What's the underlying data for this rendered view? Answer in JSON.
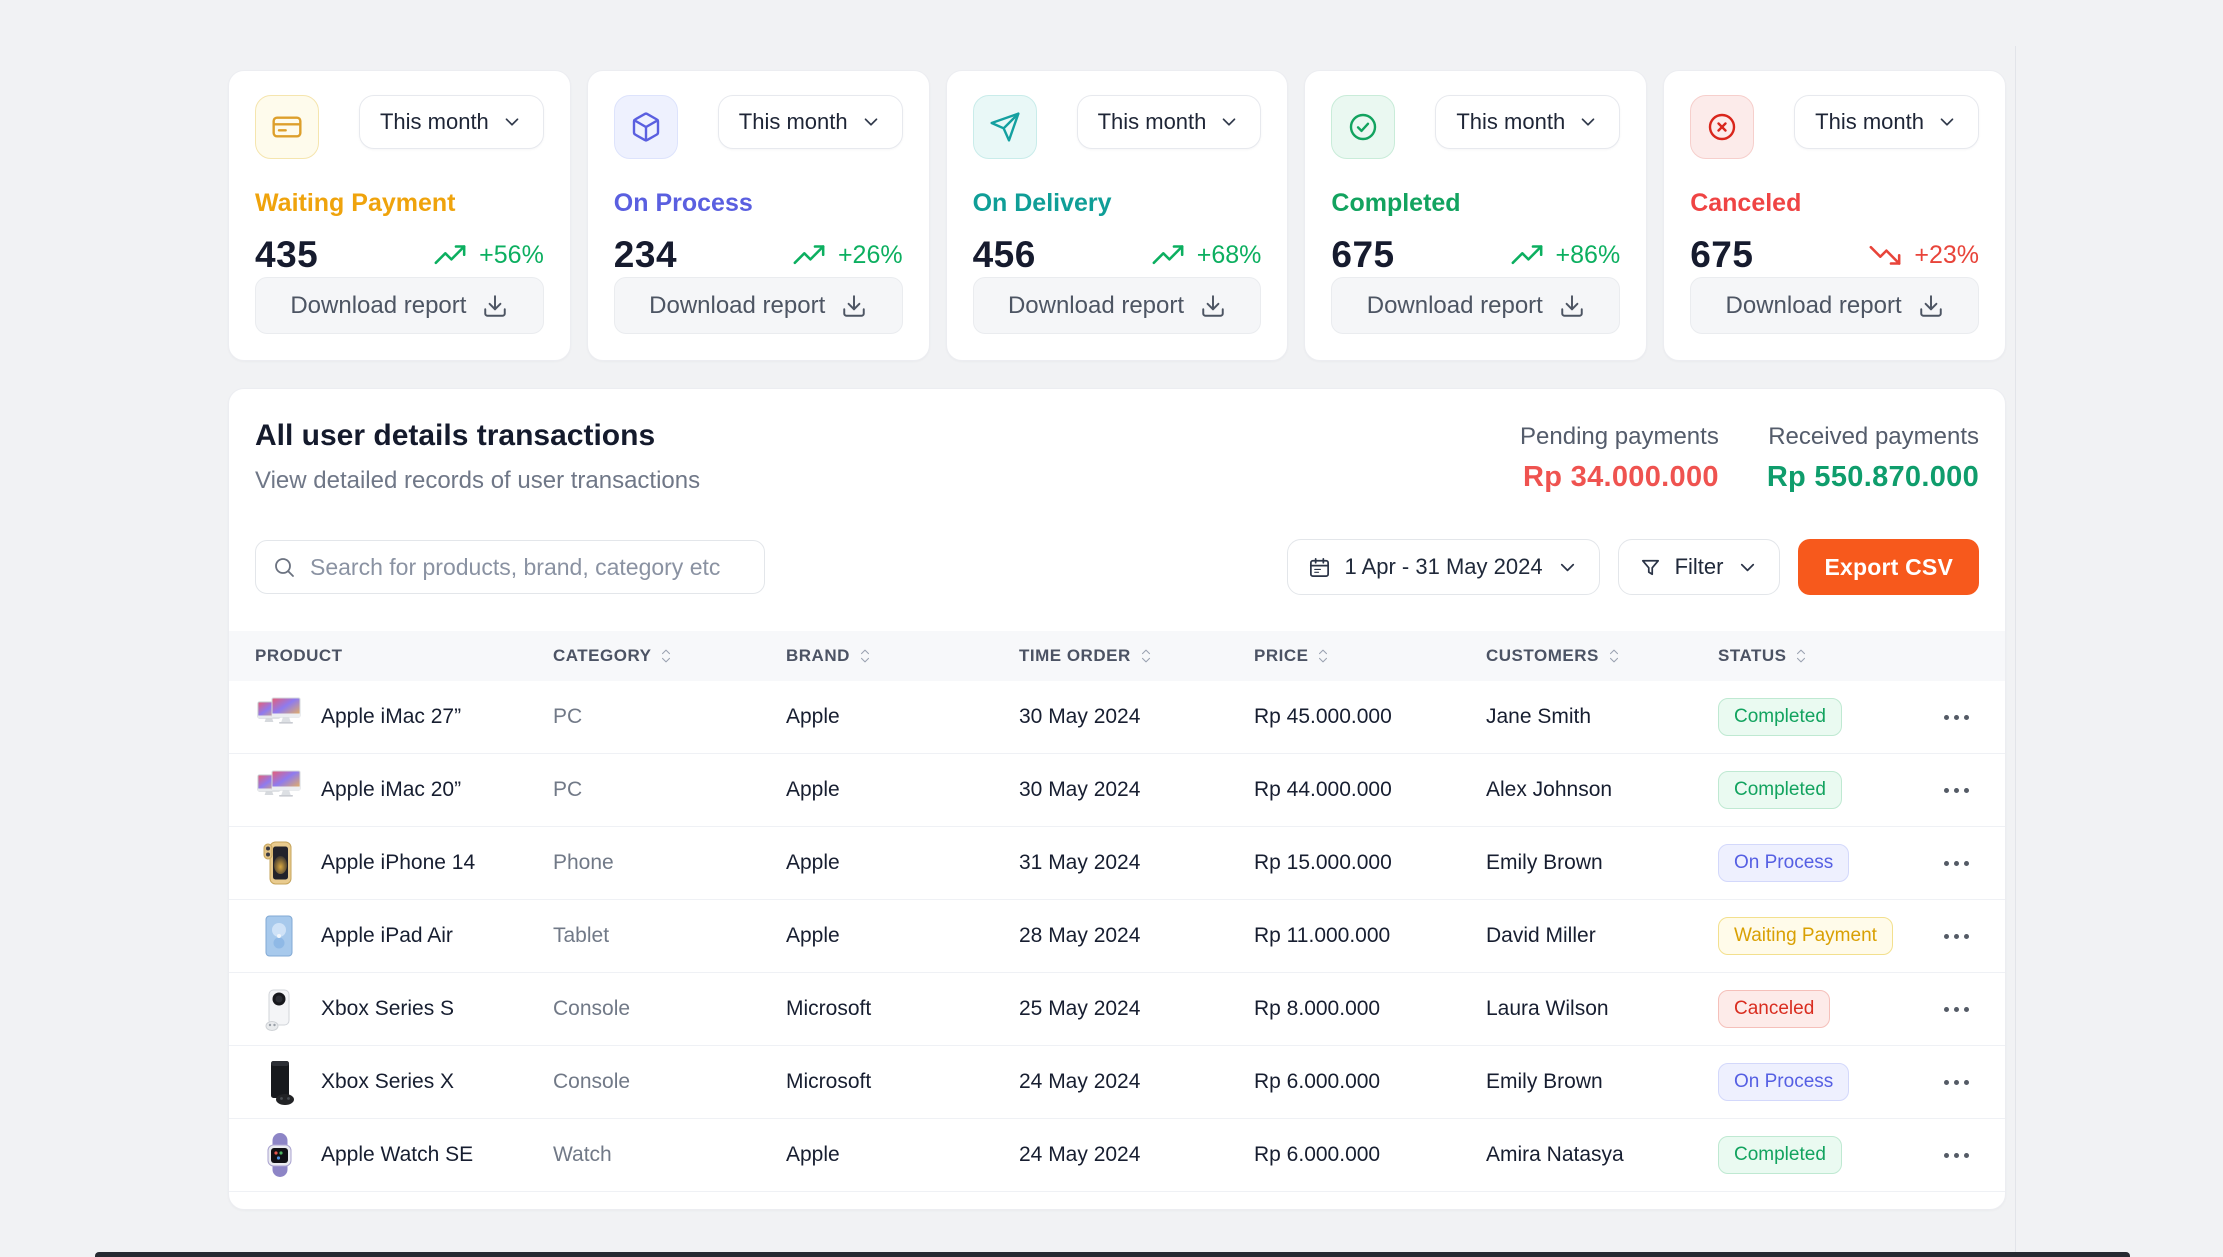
{
  "page": {
    "background": "#f1f2f4",
    "accent_orange": "#f7591c"
  },
  "stat_cards": [
    {
      "icon": "credit-card-icon",
      "icon_color": "#dd9f2b",
      "icon_bg": "#fefbec",
      "icon_border": "#f5e5ae",
      "title": "Waiting Payment",
      "title_color": "#efa30c",
      "value": "435",
      "trend": "+56%",
      "trend_icon": "trending-up-icon",
      "trend_color": "#0caf60",
      "period_label": "This month",
      "download_label": "Download report"
    },
    {
      "icon": "cube-icon",
      "icon_color": "#5a5fe0",
      "icon_bg": "#eef1fe",
      "icon_border": "#dde3fc",
      "title": "On Process",
      "title_color": "#5a5fe0",
      "value": "234",
      "trend": "+26%",
      "trend_icon": "trending-up-icon",
      "trend_color": "#0caf60",
      "period_label": "This month",
      "download_label": "Download report"
    },
    {
      "icon": "send-icon",
      "icon_color": "#14a0a0",
      "icon_bg": "#e9f8f7",
      "icon_border": "#c9ecea",
      "title": "On Delivery",
      "title_color": "#0f9e97",
      "value": "456",
      "trend": "+68%",
      "trend_icon": "trending-up-icon",
      "trend_color": "#0caf60",
      "period_label": "This month",
      "download_label": "Download report"
    },
    {
      "icon": "check-circle-icon",
      "icon_color": "#12a35f",
      "icon_bg": "#eaf8f1",
      "icon_border": "#c9ecd9",
      "title": "Completed",
      "title_color": "#12a35f",
      "value": "675",
      "trend": "+86%",
      "trend_icon": "trending-up-icon",
      "trend_color": "#0caf60",
      "period_label": "This month",
      "download_label": "Download report"
    },
    {
      "icon": "x-circle-icon",
      "icon_color": "#d9261c",
      "icon_bg": "#fcebea",
      "icon_border": "#f6cfcc",
      "title": "Canceled",
      "title_color": "#ef4444",
      "value": "675",
      "trend": "+23%",
      "trend_icon": "trending-down-icon",
      "trend_color": "#e8443a",
      "period_label": "This month",
      "download_label": "Download report"
    }
  ],
  "transactions": {
    "title": "All user details transactions",
    "subtitle": "View detailed records of user transactions",
    "pending_label": "Pending payments",
    "pending_value": "Rp 34.000.000",
    "pending_color": "#ef5350",
    "received_label": "Received payments",
    "received_value": "Rp 550.870.000",
    "received_color": "#0f9d6c",
    "search_placeholder": "Search for products, brand, category etc",
    "date_range": "1 Apr - 31 May 2024",
    "filter_label": "Filter",
    "export_label": "Export CSV",
    "columns": [
      {
        "label": "PRODUCT",
        "sortable": false
      },
      {
        "label": "CATEGORY",
        "sortable": true
      },
      {
        "label": "BRAND",
        "sortable": true
      },
      {
        "label": "TIME ORDER",
        "sortable": true
      },
      {
        "label": "PRICE",
        "sortable": true
      },
      {
        "label": "CUSTOMERS",
        "sortable": true
      },
      {
        "label": "STATUS",
        "sortable": true
      }
    ],
    "rows": [
      {
        "product": "Apple iMac 27”",
        "thumb_icon": "imac-thumb",
        "category": "PC",
        "brand": "Apple",
        "time_order": "30 May 2024",
        "price": "Rp 45.000.000",
        "customer": "Jane Smith",
        "status": "Completed"
      },
      {
        "product": "Apple iMac 20”",
        "thumb_icon": "imac-thumb",
        "category": "PC",
        "brand": "Apple",
        "time_order": "30 May 2024",
        "price": "Rp 44.000.000",
        "customer": "Alex Johnson",
        "status": "Completed"
      },
      {
        "product": "Apple iPhone 14",
        "thumb_icon": "iphone-thumb",
        "category": "Phone",
        "brand": "Apple",
        "time_order": "31 May 2024",
        "price": "Rp 15.000.000",
        "customer": "Emily Brown",
        "status": "On Process"
      },
      {
        "product": "Apple iPad Air",
        "thumb_icon": "ipad-thumb",
        "category": "Tablet",
        "brand": "Apple",
        "time_order": "28 May 2024",
        "price": "Rp 11.000.000",
        "customer": "David Miller",
        "status": "Waiting Payment"
      },
      {
        "product": "Xbox Series S",
        "thumb_icon": "xbox-s-thumb",
        "category": "Console",
        "brand": "Microsoft",
        "time_order": "25 May 2024",
        "price": "Rp 8.000.000",
        "customer": "Laura Wilson",
        "status": "Canceled"
      },
      {
        "product": "Xbox Series X",
        "thumb_icon": "xbox-x-thumb",
        "category": "Console",
        "brand": "Microsoft",
        "time_order": "24 May 2024",
        "price": "Rp 6.000.000",
        "customer": "Emily Brown",
        "status": "On Process"
      },
      {
        "product": "Apple Watch SE",
        "thumb_icon": "watch-thumb",
        "category": "Watch",
        "brand": "Apple",
        "time_order": "24 May 2024",
        "price": "Rp 6.000.000",
        "customer": "Amira Natasya",
        "status": "Completed"
      }
    ]
  },
  "status_styles": {
    "Completed": {
      "color": "#12a35f",
      "bg": "#eafaf1",
      "border": "#bfe9d2"
    },
    "On Process": {
      "color": "#555fe3",
      "bg": "#eef0fe",
      "border": "#d3d8fb"
    },
    "Waiting Payment": {
      "color": "#d9a003",
      "bg": "#fffbea",
      "border": "#f3e08e"
    },
    "Canceled": {
      "color": "#d92d20",
      "bg": "#fdebe9",
      "border": "#f5c0ba"
    }
  }
}
